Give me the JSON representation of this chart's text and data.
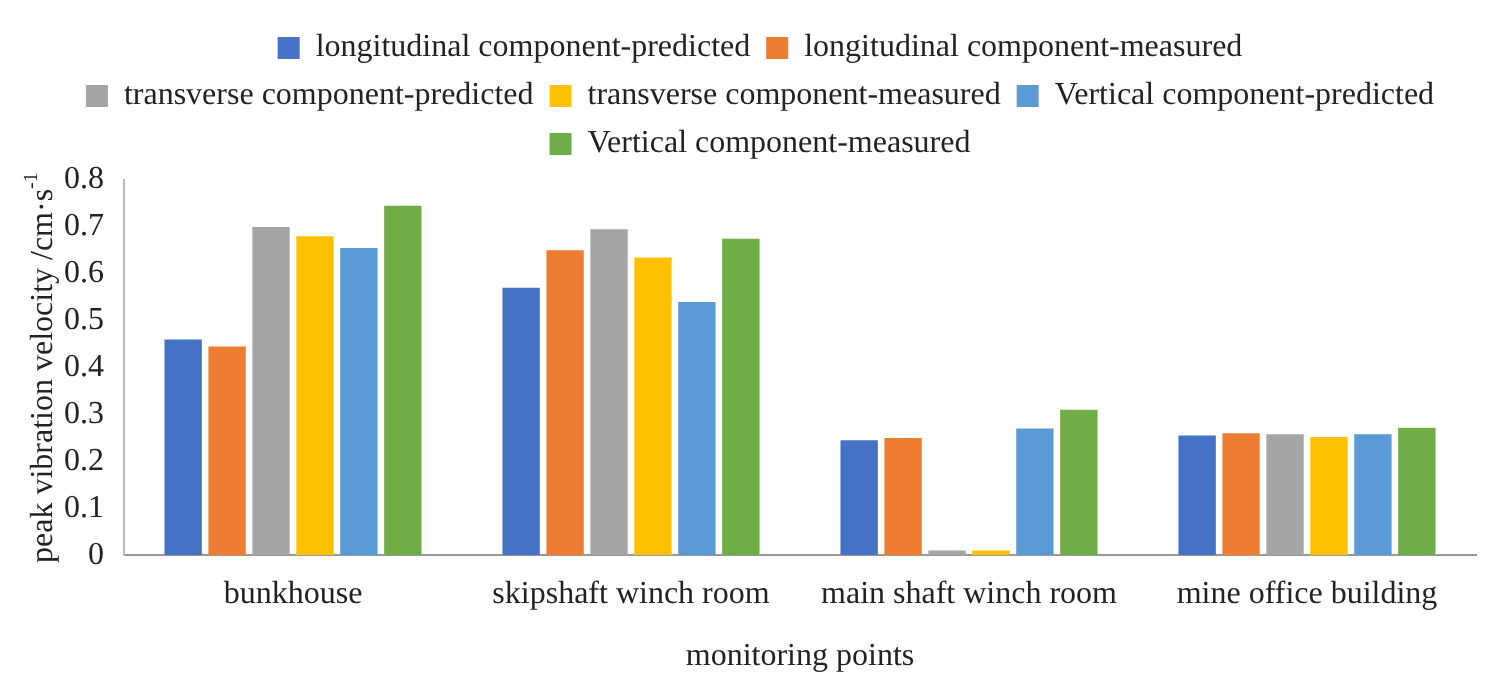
{
  "chart_data": {
    "type": "bar",
    "xlabel": "monitoring points",
    "ylabel": "peak vibration velocity /cm·s$^{-1}$",
    "categories": [
      "bunkhouse",
      "skipshaft winch room",
      "main shaft winch room",
      "mine office building"
    ],
    "series": [
      {
        "name": "longitudinal component-predicted",
        "color": "#4472c4",
        "values": [
          0.46,
          0.57,
          0.245,
          0.255
        ]
      },
      {
        "name": "longitudinal component-measured",
        "color": "#ed7d31",
        "values": [
          0.445,
          0.65,
          0.25,
          0.26
        ]
      },
      {
        "name": "transverse component-predicted",
        "color": "#a5a5a5",
        "values": [
          0.7,
          0.695,
          0.01,
          0.258
        ]
      },
      {
        "name": "transverse component-measured",
        "color": "#ffc000",
        "values": [
          0.68,
          0.635,
          0.01,
          0.252
        ]
      },
      {
        "name": "Vertical component-predicted",
        "color": "#5b9bd5",
        "values": [
          0.655,
          0.54,
          0.27,
          0.258
        ]
      },
      {
        "name": "Vertical component-measured",
        "color": "#70ad47",
        "values": [
          0.745,
          0.675,
          0.31,
          0.272
        ]
      }
    ],
    "ylim": [
      0,
      0.8
    ],
    "yticks": [
      0,
      0.1,
      0.2,
      0.3,
      0.4,
      0.5,
      0.6,
      0.7,
      0.8
    ],
    "grid": false,
    "legend": "top"
  }
}
